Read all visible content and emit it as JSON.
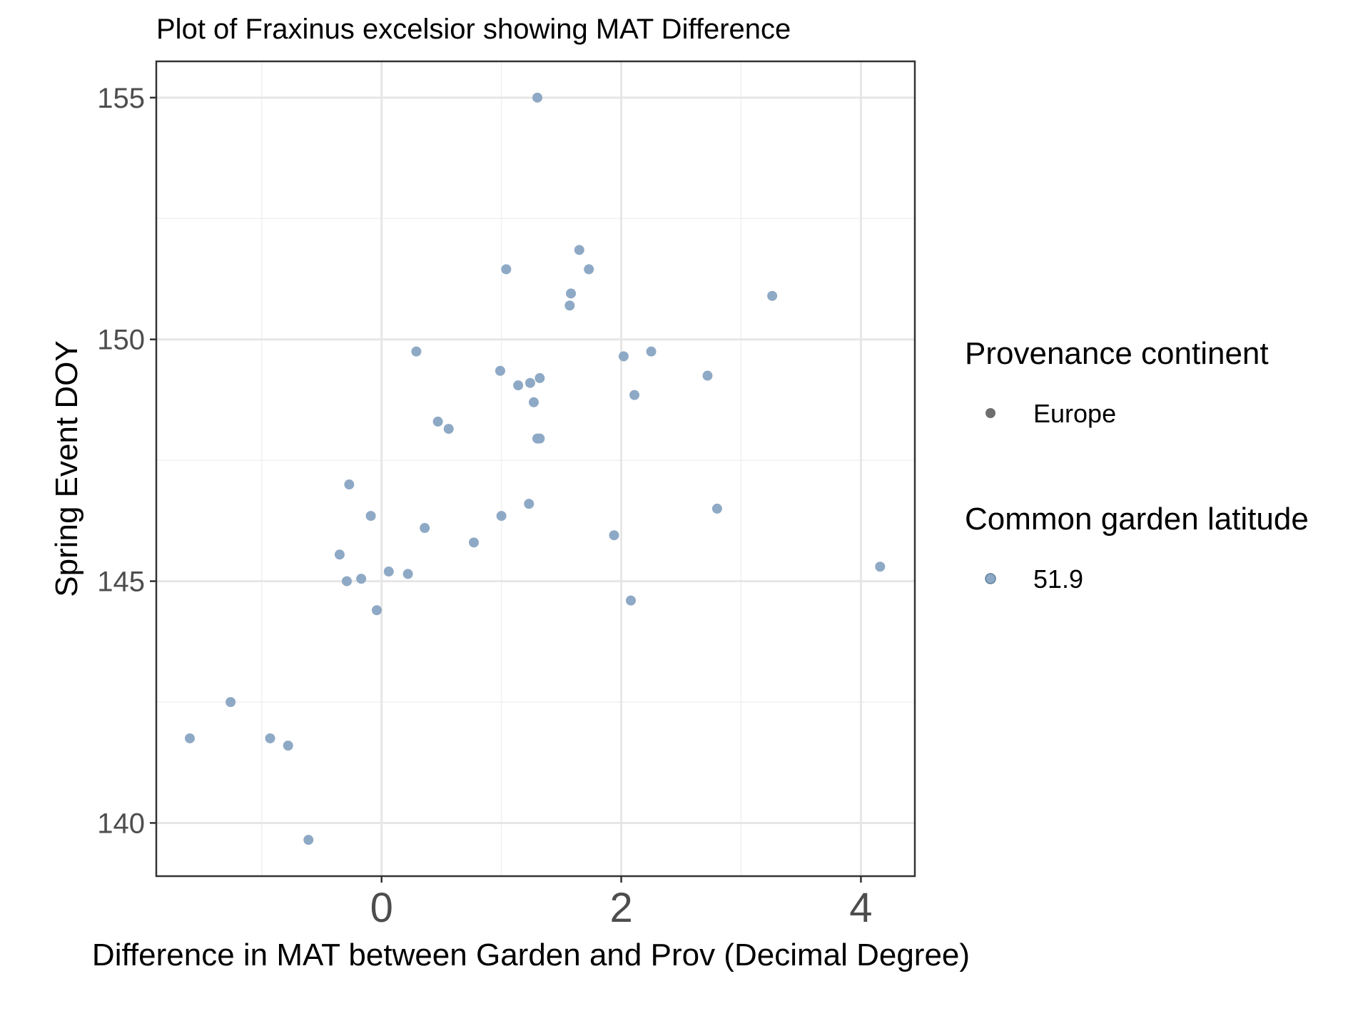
{
  "chart_data": {
    "type": "scatter",
    "title": "Plot of Fraxinus excelsior showing MAT Difference",
    "xlabel": "Difference in MAT between Garden and Prov (Decimal Degree)",
    "ylabel": "Spring Event DOY",
    "xlim": [
      -1.88,
      4.45
    ],
    "ylim": [
      138.9,
      155.75
    ],
    "x_ticks": [
      0,
      2,
      4
    ],
    "x_tick_labels": [
      "0",
      "2",
      "4"
    ],
    "y_ticks": [
      140,
      145,
      150,
      155
    ],
    "y_tick_labels": [
      "140",
      "145",
      "150",
      "155"
    ],
    "grid": true,
    "legend_position": "right",
    "legend": [
      {
        "title": "Provenance continent",
        "entries": [
          {
            "label": "Europe",
            "color": "#6e6e6e"
          }
        ]
      },
      {
        "title": "Common garden latitude",
        "entries": [
          {
            "label": "51.9",
            "color": "#8ea9c5"
          }
        ]
      }
    ],
    "series": [
      {
        "color": "#8ea9c5",
        "points": [
          {
            "x": 1.3,
            "y": 155.0
          },
          {
            "x": 1.65,
            "y": 151.85
          },
          {
            "x": 1.04,
            "y": 151.45
          },
          {
            "x": 1.73,
            "y": 151.45
          },
          {
            "x": 1.58,
            "y": 150.95
          },
          {
            "x": 1.57,
            "y": 150.7
          },
          {
            "x": 3.26,
            "y": 150.9
          },
          {
            "x": 0.29,
            "y": 149.75
          },
          {
            "x": 2.02,
            "y": 149.65
          },
          {
            "x": 2.25,
            "y": 149.75
          },
          {
            "x": 0.99,
            "y": 149.35
          },
          {
            "x": 2.72,
            "y": 149.25
          },
          {
            "x": 1.32,
            "y": 149.2
          },
          {
            "x": 1.14,
            "y": 149.05
          },
          {
            "x": 1.24,
            "y": 149.1
          },
          {
            "x": 2.11,
            "y": 148.85
          },
          {
            "x": 1.27,
            "y": 148.7
          },
          {
            "x": 0.47,
            "y": 148.3
          },
          {
            "x": 0.56,
            "y": 148.15
          },
          {
            "x": 1.3,
            "y": 147.95
          },
          {
            "x": 1.32,
            "y": 147.95
          },
          {
            "x": -0.27,
            "y": 147.0
          },
          {
            "x": 1.23,
            "y": 146.6
          },
          {
            "x": 2.8,
            "y": 146.5
          },
          {
            "x": -0.09,
            "y": 146.35
          },
          {
            "x": 1.0,
            "y": 146.35
          },
          {
            "x": 0.36,
            "y": 146.1
          },
          {
            "x": 1.94,
            "y": 145.95
          },
          {
            "x": 0.77,
            "y": 145.8
          },
          {
            "x": -0.35,
            "y": 145.55
          },
          {
            "x": 0.06,
            "y": 145.2
          },
          {
            "x": 0.22,
            "y": 145.15
          },
          {
            "x": -0.17,
            "y": 145.05
          },
          {
            "x": -0.29,
            "y": 145.0
          },
          {
            "x": 4.16,
            "y": 145.3
          },
          {
            "x": 2.08,
            "y": 144.6
          },
          {
            "x": -0.04,
            "y": 144.4
          },
          {
            "x": -1.26,
            "y": 142.5
          },
          {
            "x": -1.6,
            "y": 141.75
          },
          {
            "x": -0.93,
            "y": 141.75
          },
          {
            "x": -0.78,
            "y": 141.6
          },
          {
            "x": -0.61,
            "y": 139.65
          }
        ]
      }
    ]
  }
}
